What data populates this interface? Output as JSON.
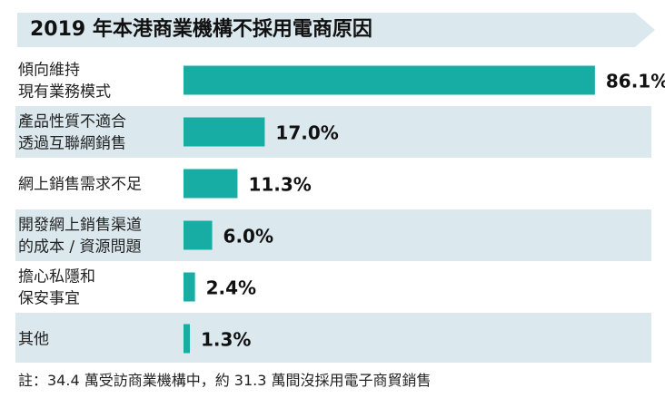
{
  "chart_data": {
    "type": "bar",
    "orientation": "horizontal",
    "title": "2019 年本港商業機構不採用電商原因",
    "categories": [
      [
        "傾向維持",
        "現有業務模式"
      ],
      [
        "產品性質不適合",
        "透過互聯網銷售"
      ],
      [
        "網上銷售需求不足"
      ],
      [
        "開發網上銷售渠道",
        "的成本 / 資源問題"
      ],
      [
        "擔心私隱和",
        "保安事宜"
      ],
      [
        "其他"
      ]
    ],
    "values": [
      86.1,
      17.0,
      11.3,
      6.0,
      2.4,
      1.3
    ],
    "value_labels": [
      "86.1%",
      "17.0%",
      "11.3%",
      "6.0%",
      "2.4%",
      "1.3%"
    ],
    "unit": "%",
    "xlim": [
      0,
      100
    ],
    "bar_color": "#17ada5",
    "alt_row_color": "#dbe8ed",
    "grid": false,
    "footnote": "註：34.4 萬受訪商業機構中，約 31.3 萬間沒採用電子商貿銷售"
  }
}
